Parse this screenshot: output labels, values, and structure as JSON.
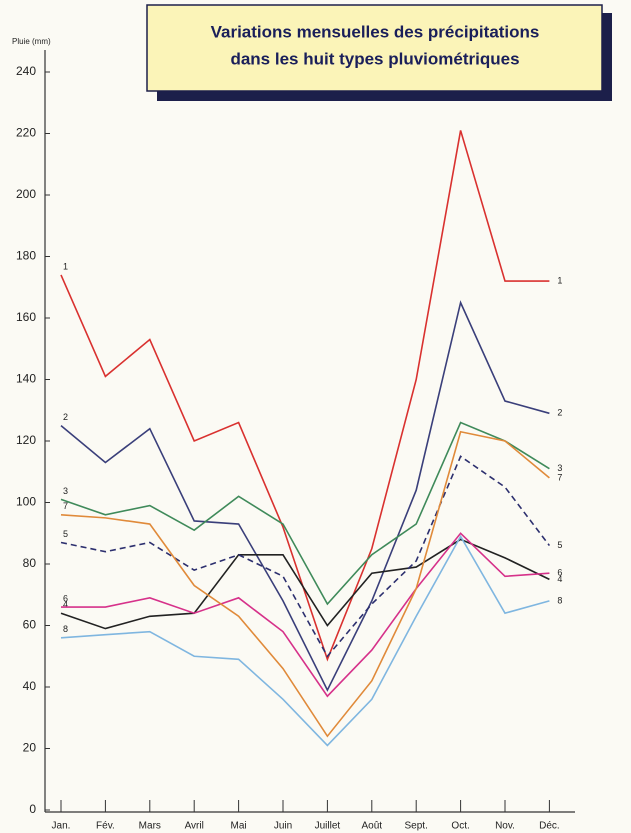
{
  "chart_data": {
    "type": "line",
    "title": [
      "Variations mensuelles des précipitations",
      "dans les huit types pluviométriques"
    ],
    "y_label": "Pluie (mm)",
    "categories": [
      "Jan.",
      "Fév.",
      "Mars",
      "Avril",
      "Mai",
      "Juin",
      "Juillet",
      "Août",
      "Sept.",
      "Oct.",
      "Nov.",
      "Déc."
    ],
    "ylim": [
      0,
      248
    ],
    "yticks": [
      0,
      20,
      40,
      60,
      80,
      100,
      120,
      140,
      160,
      180,
      200,
      220,
      240
    ],
    "series": [
      {
        "name": "1",
        "color": "#d9312f",
        "values": [
          174,
          141,
          153,
          120,
          126,
          92,
          49,
          85,
          140,
          221,
          172,
          172
        ]
      },
      {
        "name": "2",
        "color": "#3a3f7a",
        "values": [
          125,
          113,
          124,
          94,
          93,
          68,
          39,
          68,
          104,
          165,
          133,
          129
        ]
      },
      {
        "name": "3",
        "color": "#3f8a5a",
        "values": [
          101,
          96,
          99,
          91,
          102,
          93,
          67,
          83,
          93,
          126,
          120,
          111
        ]
      },
      {
        "name": "4",
        "color": "#222222",
        "values": [
          64,
          59,
          63,
          64,
          83,
          83,
          60,
          77,
          79,
          88,
          82,
          75
        ]
      },
      {
        "name": "5",
        "color": "#2c2f6e",
        "dashed": true,
        "values": [
          87,
          84,
          87,
          78,
          83,
          76,
          50,
          67,
          81,
          115,
          105,
          86
        ]
      },
      {
        "name": "6",
        "color": "#d6318a",
        "values": [
          66,
          66,
          69,
          64,
          69,
          58,
          37,
          52,
          72,
          90,
          76,
          77
        ]
      },
      {
        "name": "7",
        "color": "#e08a3a",
        "values": [
          96,
          95,
          93,
          73,
          63,
          46,
          24,
          42,
          72,
          123,
          120,
          108
        ]
      },
      {
        "name": "8",
        "color": "#7fb6e0",
        "values": [
          56,
          57,
          58,
          50,
          49,
          36,
          21,
          36,
          63,
          89,
          64,
          68
        ]
      }
    ]
  }
}
